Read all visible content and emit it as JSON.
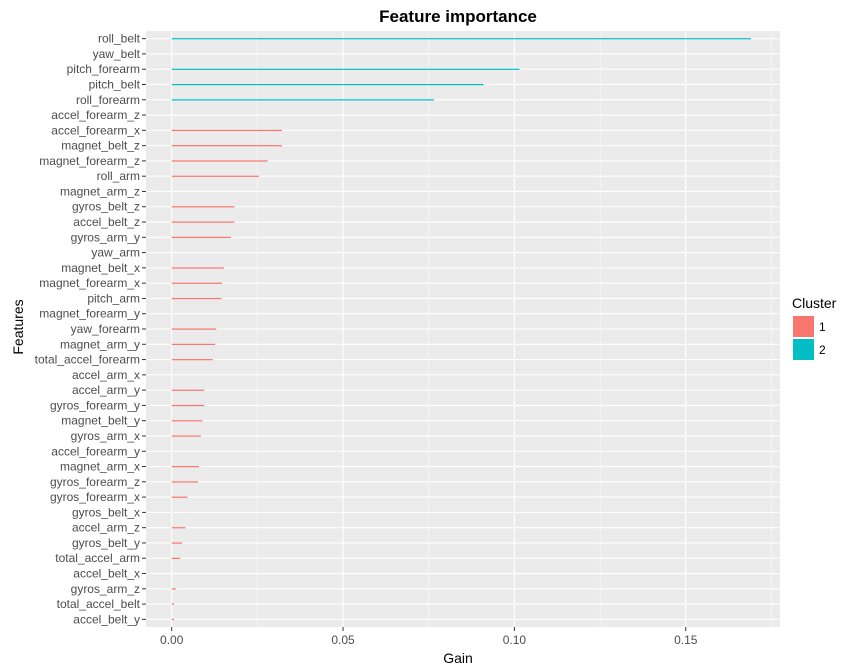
{
  "chart_data": {
    "type": "bar",
    "orientation": "horizontal",
    "title": "Feature importance",
    "xlabel": "Gain",
    "ylabel": "Features",
    "xlim": [
      -0.0075,
      0.1775
    ],
    "x_ticks": [
      0.0,
      0.05,
      0.1,
      0.15
    ],
    "x_tick_labels": [
      "0.00",
      "0.05",
      "0.10",
      "0.15"
    ],
    "grid": true,
    "legend": {
      "title": "Cluster",
      "position": "right",
      "items": [
        {
          "label": "1",
          "color": "#F8766D"
        },
        {
          "label": "2",
          "color": "#00BFC4"
        }
      ]
    },
    "categories": [
      "roll_belt",
      "yaw_belt",
      "pitch_forearm",
      "pitch_belt",
      "roll_forearm",
      "accel_forearm_z",
      "accel_forearm_x",
      "magnet_belt_z",
      "magnet_forearm_z",
      "roll_arm",
      "magnet_arm_z",
      "gyros_belt_z",
      "accel_belt_z",
      "gyros_arm_y",
      "yaw_arm",
      "magnet_belt_x",
      "magnet_forearm_x",
      "pitch_arm",
      "magnet_forearm_y",
      "yaw_forearm",
      "magnet_arm_y",
      "total_accel_forearm",
      "accel_arm_x",
      "accel_arm_y",
      "gyros_forearm_y",
      "magnet_belt_y",
      "gyros_arm_x",
      "accel_forearm_y",
      "magnet_arm_x",
      "gyros_forearm_z",
      "gyros_forearm_x",
      "gyros_belt_x",
      "accel_arm_z",
      "gyros_belt_y",
      "total_accel_arm",
      "accel_belt_x",
      "gyros_arm_z",
      "total_accel_belt",
      "accel_belt_y"
    ],
    "values": [
      0.169,
      0.0,
      0.1015,
      0.091,
      0.0765,
      0.0,
      0.0322,
      0.0322,
      0.028,
      0.0255,
      0.0,
      0.0183,
      0.0183,
      0.0173,
      0.0,
      0.0152,
      0.0147,
      0.0145,
      0.0,
      0.013,
      0.0127,
      0.012,
      0.0,
      0.0095,
      0.0095,
      0.009,
      0.0085,
      0.0,
      0.008,
      0.0077,
      0.0046,
      0.0,
      0.004,
      0.003,
      0.0025,
      0.0,
      0.0012,
      0.0007,
      0.0007
    ],
    "cluster": [
      2,
      2,
      2,
      2,
      2,
      1,
      1,
      1,
      1,
      1,
      1,
      1,
      1,
      1,
      1,
      1,
      1,
      1,
      1,
      1,
      1,
      1,
      1,
      1,
      1,
      1,
      1,
      1,
      1,
      1,
      1,
      1,
      1,
      1,
      1,
      1,
      1,
      1,
      1
    ],
    "panel_color": "#EBEBEB",
    "grid_color": "#FFFFFF"
  }
}
